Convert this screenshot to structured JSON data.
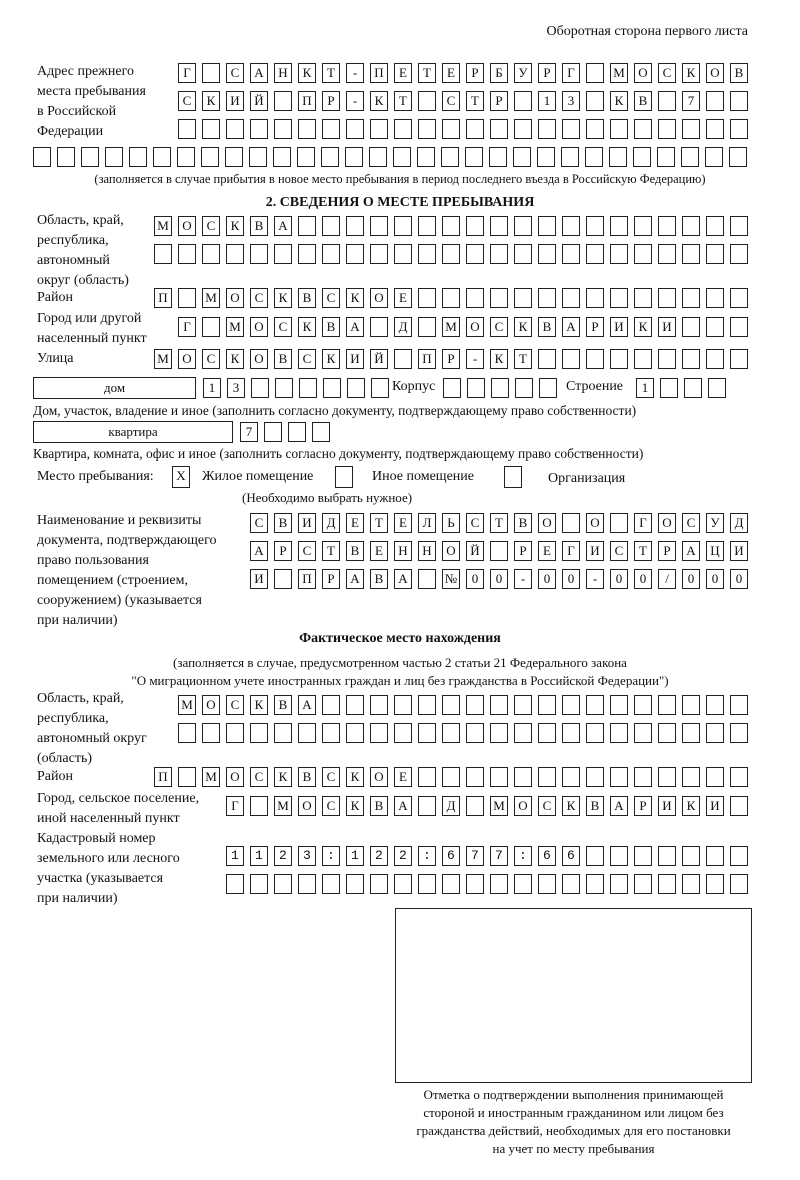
{
  "header": "Оборотная сторона первого листа",
  "prev_address": {
    "label": [
      "Адрес прежнего",
      "места пребывания",
      "в Российской",
      "Федерации"
    ],
    "rows": [
      "Г САНКТ-ПЕТЕРБУРГ МОСКОВ",
      "СКИЙ ПР-КТ СТР 13 КВ 7  ",
      "",
      "",
      ""
    ],
    "note": "(заполняется в случае прибытия в новое место пребывания в период последнего въезда в Российскую Федерацию)"
  },
  "section2": {
    "title": "2. СВЕДЕНИЯ О МЕСТЕ ПРЕБЫВАНИЯ",
    "region_label": [
      "Область, край,",
      "республика,",
      "автономный",
      "округ (область)"
    ],
    "region_rows": [
      "МОСКВА",
      ""
    ],
    "district_label": "Район",
    "district": "П МОСКВСКОЕ",
    "city_label": [
      "Город или другой",
      "населенный пункт"
    ],
    "city": "Г МОСКВА Д МОСКВАРИКИ",
    "street_label": "Улица",
    "street": "МОСКОВСКИЙ ПР-КТ",
    "house_type": "дом",
    "house_number": "13",
    "building_label": "Корпус",
    "building": "",
    "structure_label": "Строение",
    "structure": "1",
    "house_note": "Дом, участок, владение и иное (заполнить согласно документу, подтверждающему право собственности)",
    "apt_type": "квартира",
    "apt_number": "7",
    "apt_note": "Квартира, комната, офис и иное (заполнить согласно документу, подтверждающему право собственности)",
    "stay_label": "Место пребывания:",
    "options": [
      {
        "label": "Жилое помещение",
        "mark": "X"
      },
      {
        "label": "Иное помещение",
        "mark": ""
      },
      {
        "label": "Организация",
        "mark": ""
      }
    ],
    "choose_note": "(Необходимо выбрать нужное)",
    "doc_label": [
      "Наименование и реквизиты",
      "документа, подтверждающего",
      "право пользования",
      "помещением (строением,",
      "сооружением) (указывается",
      "при наличии)"
    ],
    "doc_rows": [
      "СВИДЕТЕЛЬСТВО О ГОСУД",
      "АРСТВЕННОЙ РЕГИСТРАЦИ",
      "И ПРАВА №00-00-00/000"
    ]
  },
  "actual": {
    "title": "Фактическое место нахождения",
    "note1": "(заполняется в случае, предусмотренном частью 2 статьи 21 Федерального закона",
    "note2": "\"О миграционном учете иностранных граждан и лиц без гражданства в Российской Федерации\")",
    "region_label": [
      "Область, край,",
      "республика,",
      "автономный округ",
      "(область)"
    ],
    "region_rows": [
      "МОСКВА",
      ""
    ],
    "district_label": "Район",
    "district": "П МОСКВСКОЕ",
    "city_label": [
      "Город, сельское поселение,",
      "иной населенный пункт"
    ],
    "city": "Г МОСКВА Д МОСКВАРИКИ",
    "cadastre_label": [
      "Кадастровый номер",
      "земельного или лесного",
      "участка (указывается",
      "при наличии)"
    ],
    "cadastre_rows": [
      "1123:122:677:66",
      ""
    ]
  },
  "stamp_caption": [
    "Отметка о подтверждении выполнения принимающей",
    "стороной и иностранным гражданином или лицом без",
    "гражданства действий, необходимых для его постановки",
    "на учет по месту пребывания"
  ]
}
